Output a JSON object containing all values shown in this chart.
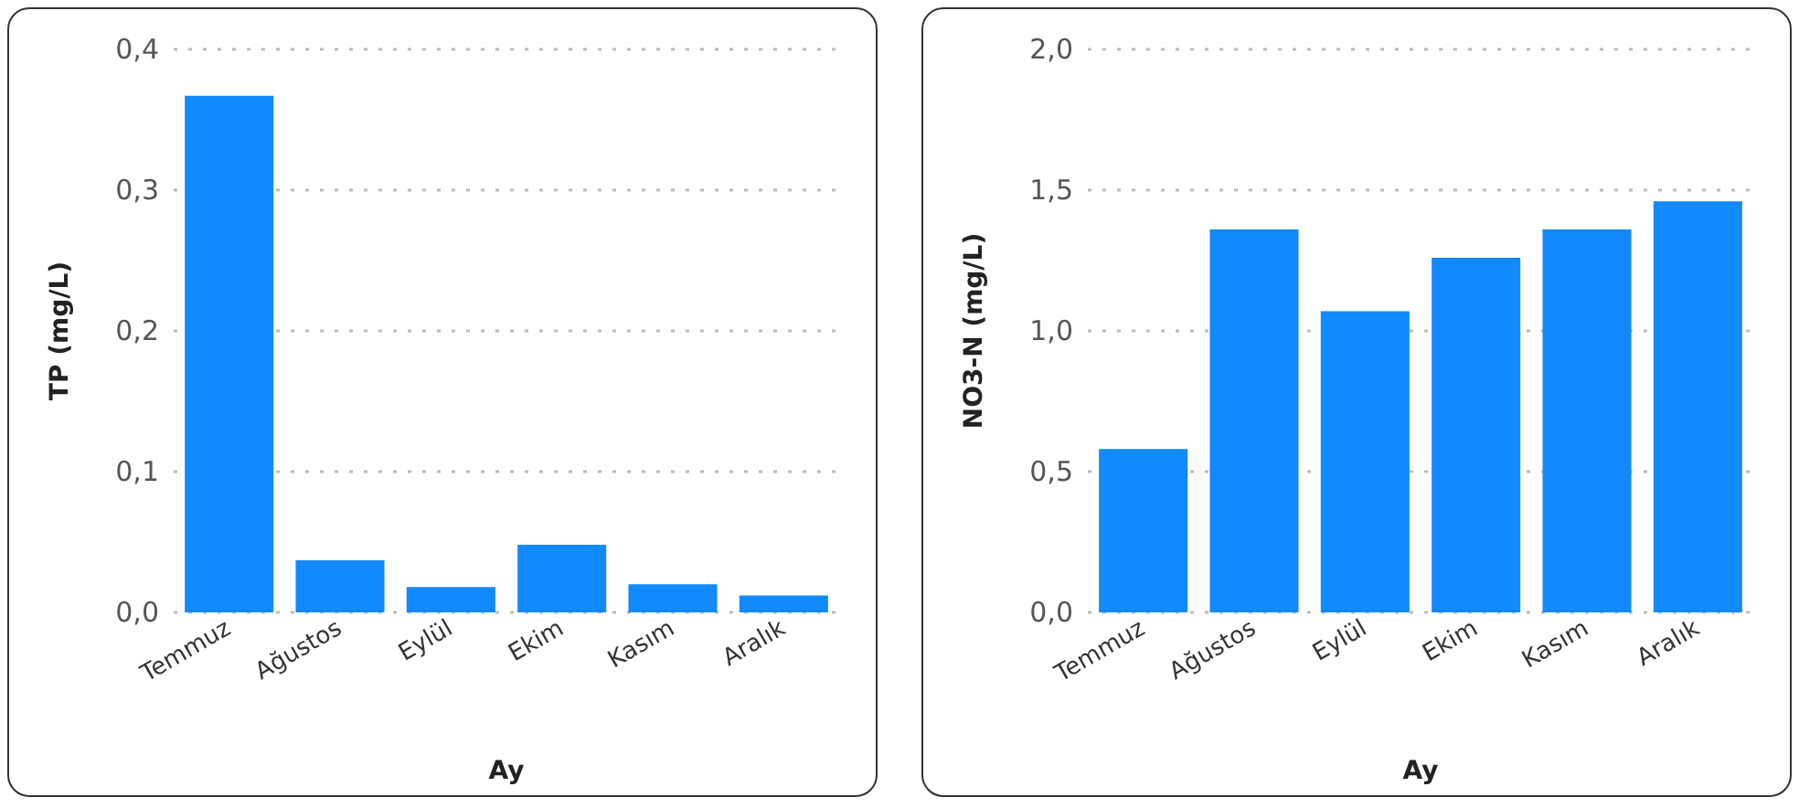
{
  "chart_data": [
    {
      "type": "bar",
      "xlabel": "Ay",
      "ylabel": "TP (mg/L)",
      "categories": [
        "Temmuz",
        "Ağustos",
        "Eylül",
        "Ekim",
        "Kasım",
        "Aralık"
      ],
      "values": [
        0.367,
        0.037,
        0.018,
        0.048,
        0.02,
        0.012
      ],
      "color": "#1389fe",
      "ylim": [
        0,
        0.4
      ],
      "yticks": [
        {
          "value": 0,
          "label": "0,0"
        },
        {
          "value": 0.1,
          "label": "0,1"
        },
        {
          "value": 0.2,
          "label": "0,2"
        },
        {
          "value": 0.3,
          "label": "0,3"
        },
        {
          "value": 0.4,
          "label": "0,4"
        }
      ],
      "grid": "y"
    },
    {
      "type": "bar",
      "xlabel": "Ay",
      "ylabel": "NO3-N (mg/L)",
      "categories": [
        "Temmuz",
        "Ağustos",
        "Eylül",
        "Ekim",
        "Kasım",
        "Aralık"
      ],
      "values": [
        0.58,
        1.36,
        1.07,
        1.26,
        1.36,
        1.46
      ],
      "color": "#1389fe",
      "ylim": [
        0,
        2
      ],
      "yticks": [
        {
          "value": 0,
          "label": "0,0"
        },
        {
          "value": 0.5,
          "label": "0,5"
        },
        {
          "value": 1,
          "label": "1,0"
        },
        {
          "value": 1.5,
          "label": "1,5"
        },
        {
          "value": 2,
          "label": "2,0"
        }
      ],
      "grid": "y"
    }
  ]
}
